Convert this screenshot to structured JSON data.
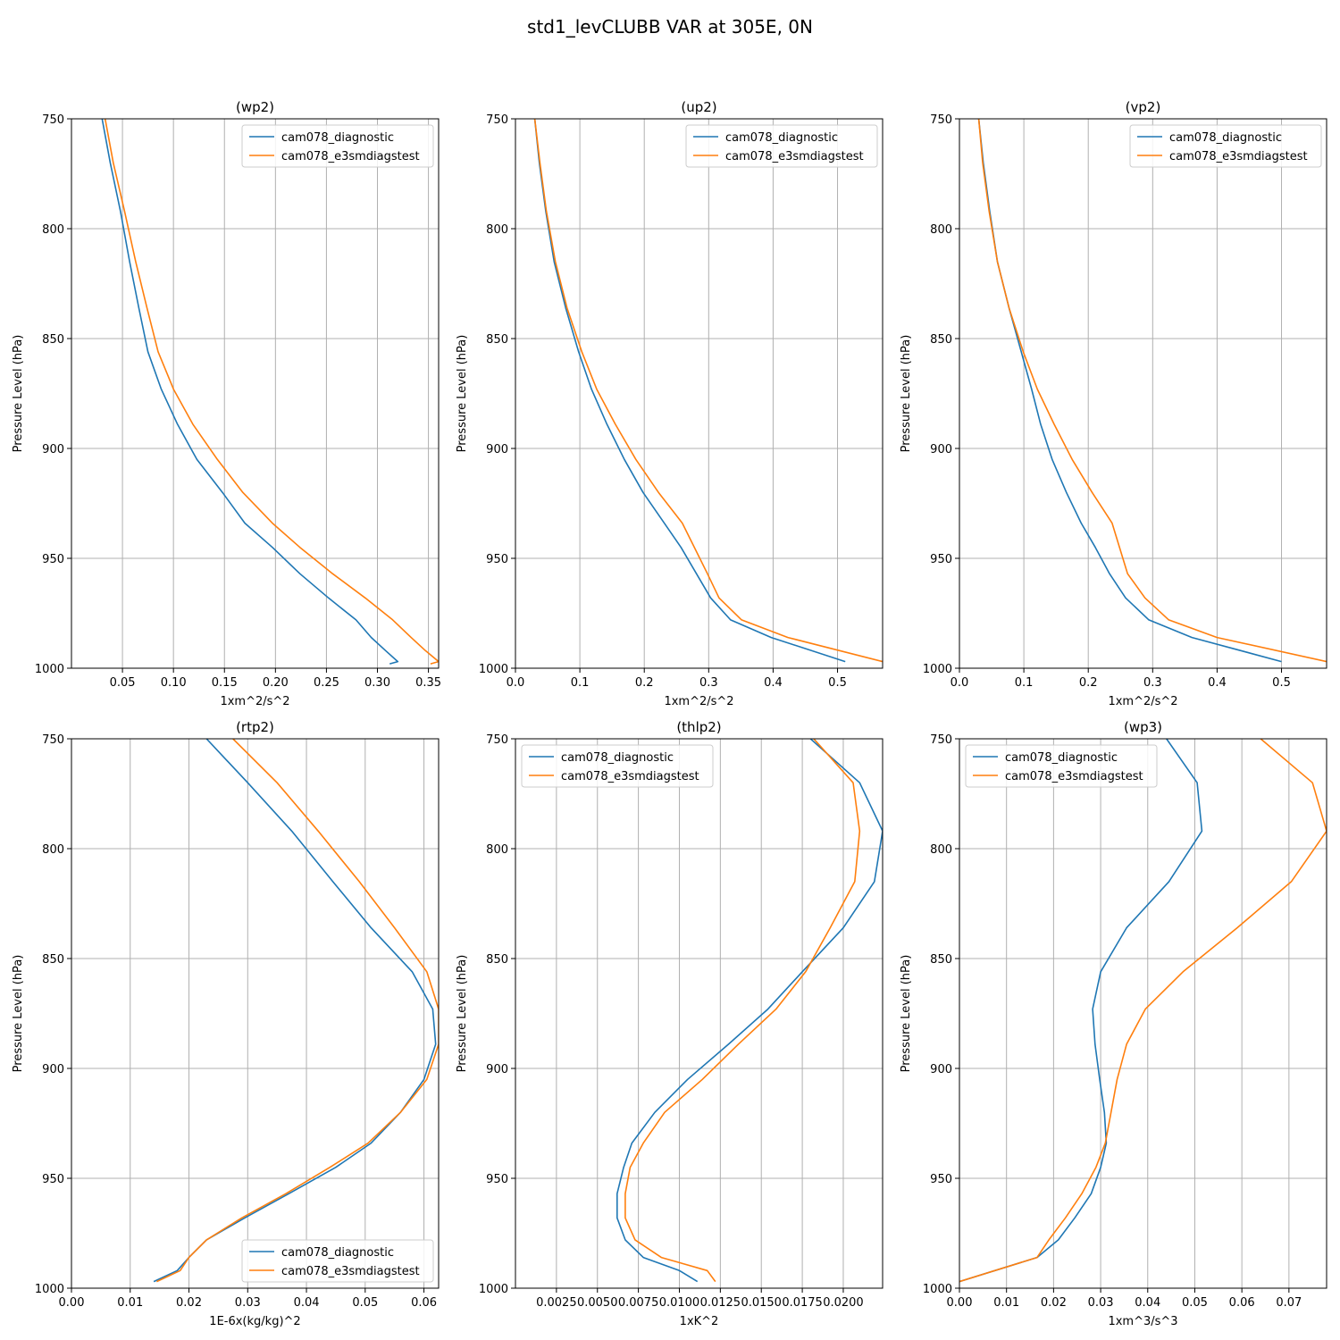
{
  "figure_title": "std1_levCLUBB VAR at 305E, 0N",
  "colors": {
    "series_1": "#1f77b4",
    "series_2": "#ff7f0e",
    "grid": "#b0b0b0"
  },
  "chart_data": [
    {
      "type": "line",
      "title": "(wp2)",
      "xlabel": "1xm^2/s^2",
      "ylabel": "Pressure Level (hPa)",
      "xlim": [
        0.0,
        0.36
      ],
      "ylim": [
        1000,
        750
      ],
      "xticks": [
        0.05,
        0.1,
        0.15,
        0.2,
        0.25,
        0.3,
        0.35
      ],
      "xtick_labels": [
        "0.05",
        "0.10",
        "0.15",
        "0.20",
        "0.25",
        "0.30",
        "0.35"
      ],
      "yticks": [
        750,
        800,
        850,
        900,
        950,
        1000
      ],
      "legend_loc": "upper right",
      "series": [
        {
          "name": "cam078_diagnostic",
          "x": [
            0.03,
            0.038,
            0.048,
            0.057,
            0.066,
            0.075,
            0.088,
            0.104,
            0.123,
            0.148,
            0.17,
            0.197,
            0.224,
            0.252,
            0.279,
            0.294,
            0.308,
            0.32,
            0.312
          ],
          "y": [
            750,
            770,
            792,
            815,
            836,
            856,
            873,
            889,
            905,
            920,
            934,
            945,
            957,
            968,
            978,
            986,
            992,
            997,
            998
          ]
        },
        {
          "name": "cam078_e3smdiagstest",
          "x": [
            0.033,
            0.041,
            0.052,
            0.063,
            0.074,
            0.085,
            0.1,
            0.119,
            0.143,
            0.168,
            0.197,
            0.224,
            0.256,
            0.288,
            0.315,
            0.333,
            0.347,
            0.36,
            0.352
          ],
          "y": [
            750,
            770,
            792,
            815,
            836,
            856,
            873,
            889,
            905,
            920,
            934,
            945,
            957,
            968,
            978,
            986,
            992,
            997,
            998
          ]
        }
      ]
    },
    {
      "type": "line",
      "title": "(up2)",
      "xlabel": "1xm^2/s^2",
      "ylabel": "Pressure Level (hPa)",
      "xlim": [
        0.0,
        0.57
      ],
      "ylim": [
        1000,
        750
      ],
      "xticks": [
        0.0,
        0.1,
        0.2,
        0.3,
        0.4,
        0.5
      ],
      "xtick_labels": [
        "0.0",
        "0.1",
        "0.2",
        "0.3",
        "0.4",
        "0.5"
      ],
      "yticks": [
        750,
        800,
        850,
        900,
        950,
        1000
      ],
      "legend_loc": "upper right",
      "series": [
        {
          "name": "cam078_diagnostic",
          "x": [
            0.03,
            0.037,
            0.047,
            0.06,
            0.078,
            0.098,
            0.118,
            0.142,
            0.169,
            0.198,
            0.231,
            0.257,
            0.281,
            0.303,
            0.334,
            0.397,
            0.512
          ],
          "y": [
            750,
            770,
            792,
            815,
            836,
            856,
            873,
            889,
            905,
            920,
            934,
            945,
            957,
            968,
            978,
            986,
            997
          ]
        },
        {
          "name": "cam078_e3smdiagstest",
          "x": [
            0.03,
            0.038,
            0.048,
            0.062,
            0.08,
            0.103,
            0.126,
            0.155,
            0.187,
            0.222,
            0.259,
            0.298,
            0.316,
            0.351,
            0.423,
            0.57
          ],
          "y": [
            750,
            770,
            792,
            815,
            836,
            856,
            873,
            889,
            905,
            920,
            934,
            957,
            968,
            978,
            986,
            997
          ]
        }
      ]
    },
    {
      "type": "line",
      "title": "(vp2)",
      "xlabel": "1xm^2/s^2",
      "ylabel": "Pressure Level (hPa)",
      "xlim": [
        0.0,
        0.57
      ],
      "ylim": [
        1000,
        750
      ],
      "xticks": [
        0.0,
        0.1,
        0.2,
        0.3,
        0.4,
        0.5
      ],
      "xtick_labels": [
        "0.0",
        "0.1",
        "0.2",
        "0.3",
        "0.4",
        "0.5"
      ],
      "yticks": [
        750,
        800,
        850,
        900,
        950,
        1000
      ],
      "legend_loc": "upper right",
      "series": [
        {
          "name": "cam078_diagnostic",
          "x": [
            0.03,
            0.037,
            0.047,
            0.059,
            0.077,
            0.096,
            0.112,
            0.126,
            0.144,
            0.166,
            0.189,
            0.211,
            0.233,
            0.258,
            0.294,
            0.361,
            0.5
          ],
          "y": [
            750,
            770,
            792,
            815,
            836,
            856,
            873,
            889,
            905,
            920,
            934,
            945,
            957,
            968,
            978,
            986,
            997
          ]
        },
        {
          "name": "cam078_e3smdiagstest",
          "x": [
            0.03,
            0.036,
            0.046,
            0.059,
            0.077,
            0.099,
            0.121,
            0.147,
            0.175,
            0.206,
            0.237,
            0.261,
            0.288,
            0.325,
            0.4,
            0.57
          ],
          "y": [
            750,
            770,
            792,
            815,
            836,
            856,
            873,
            889,
            905,
            920,
            934,
            957,
            968,
            978,
            986,
            997
          ]
        }
      ]
    },
    {
      "type": "line",
      "title": "(rtp2)",
      "xlabel": "1E-6x(kg/kg)^2",
      "ylabel": "Pressure Level (hPa)",
      "xlim": [
        0.0,
        0.0625
      ],
      "ylim": [
        1000,
        750
      ],
      "xticks": [
        0.0,
        0.01,
        0.02,
        0.03,
        0.04,
        0.05,
        0.06
      ],
      "xtick_labels": [
        "0.00",
        "0.01",
        "0.02",
        "0.03",
        "0.04",
        "0.05",
        "0.06"
      ],
      "yticks": [
        750,
        800,
        850,
        900,
        950,
        1000
      ],
      "legend_loc": "lower right",
      "series": [
        {
          "name": "cam078_diagnostic",
          "x": [
            0.023,
            0.03,
            0.0375,
            0.0445,
            0.051,
            0.058,
            0.0615,
            0.062,
            0.06,
            0.056,
            0.051,
            0.045,
            0.037,
            0.0295,
            0.023,
            0.02,
            0.018,
            0.014
          ],
          "y": [
            750,
            770,
            792,
            815,
            836,
            856,
            873,
            889,
            905,
            920,
            934,
            945,
            957,
            968,
            978,
            986,
            992,
            997
          ]
        },
        {
          "name": "cam078_e3smdiagstest",
          "x": [
            0.0275,
            0.035,
            0.042,
            0.049,
            0.055,
            0.0605,
            0.0625,
            0.0625,
            0.0605,
            0.056,
            0.0505,
            0.044,
            0.0365,
            0.029,
            0.023,
            0.02,
            0.0185,
            0.0145
          ],
          "y": [
            750,
            770,
            792,
            815,
            836,
            856,
            873,
            889,
            905,
            920,
            934,
            945,
            957,
            968,
            978,
            986,
            992,
            997
          ]
        }
      ]
    },
    {
      "type": "line",
      "title": "(thlp2)",
      "xlabel": "1xK^2",
      "ylabel": "Pressure Level (hPa)",
      "xlim": [
        0.0,
        0.0224
      ],
      "ylim": [
        1000,
        750
      ],
      "xticks": [
        0.0025,
        0.005,
        0.0075,
        0.01,
        0.0125,
        0.015,
        0.0175,
        0.02
      ],
      "xtick_labels": [
        "0.0025",
        "0.0050",
        "0.0075",
        "0.0100",
        "0.0125",
        "0.0150",
        "0.0175",
        "0.0200"
      ],
      "yticks": [
        750,
        800,
        850,
        900,
        950,
        1000
      ],
      "legend_loc": "upper left",
      "series": [
        {
          "name": "cam078_diagnostic",
          "x": [
            0.018,
            0.021,
            0.0224,
            0.0219,
            0.02,
            0.0175,
            0.0154,
            0.013,
            0.0105,
            0.0085,
            0.0071,
            0.0066,
            0.0062,
            0.0062,
            0.0067,
            0.0078,
            0.01,
            0.0111
          ],
          "y": [
            750,
            770,
            792,
            815,
            836,
            856,
            873,
            889,
            905,
            920,
            934,
            945,
            957,
            968,
            978,
            986,
            992,
            997
          ]
        },
        {
          "name": "cam078_e3smdiagstest",
          "x": [
            0.0182,
            0.0206,
            0.021,
            0.0207,
            0.0192,
            0.0177,
            0.0159,
            0.0136,
            0.0114,
            0.0091,
            0.0078,
            0.007,
            0.0067,
            0.0067,
            0.0073,
            0.0089,
            0.0117,
            0.0122
          ],
          "y": [
            750,
            770,
            792,
            815,
            836,
            856,
            873,
            889,
            905,
            920,
            934,
            945,
            957,
            968,
            978,
            986,
            992,
            997
          ]
        }
      ]
    },
    {
      "type": "line",
      "title": "(wp3)",
      "xlabel": "1xm^3/s^3",
      "ylabel": "Pressure Level (hPa)",
      "xlim": [
        0.0,
        0.078
      ],
      "ylim": [
        1000,
        750
      ],
      "xticks": [
        0.0,
        0.01,
        0.02,
        0.03,
        0.04,
        0.05,
        0.06,
        0.07
      ],
      "xtick_labels": [
        "0.00",
        "0.01",
        "0.02",
        "0.03",
        "0.04",
        "0.05",
        "0.06",
        "0.07"
      ],
      "yticks": [
        750,
        800,
        850,
        900,
        950,
        1000
      ],
      "legend_loc": "upper left",
      "series": [
        {
          "name": "cam078_diagnostic",
          "x": [
            0.044,
            0.0505,
            0.0515,
            0.0445,
            0.0355,
            0.03,
            0.0283,
            0.0288,
            0.0298,
            0.0308,
            0.0312,
            0.03,
            0.028,
            0.0245,
            0.021,
            0.0165,
            0.0
          ],
          "y": [
            750,
            770,
            792,
            815,
            836,
            856,
            873,
            889,
            905,
            920,
            934,
            945,
            957,
            968,
            978,
            986,
            997
          ]
        },
        {
          "name": "cam078_e3smdiagstest",
          "x": [
            0.064,
            0.075,
            0.078,
            0.0705,
            0.059,
            0.0475,
            0.0395,
            0.0355,
            0.0335,
            0.0322,
            0.031,
            0.029,
            0.026,
            0.0225,
            0.019,
            0.0165,
            0.0
          ],
          "y": [
            750,
            770,
            792,
            815,
            836,
            856,
            873,
            889,
            905,
            920,
            934,
            945,
            957,
            968,
            978,
            986,
            997
          ]
        }
      ]
    }
  ]
}
